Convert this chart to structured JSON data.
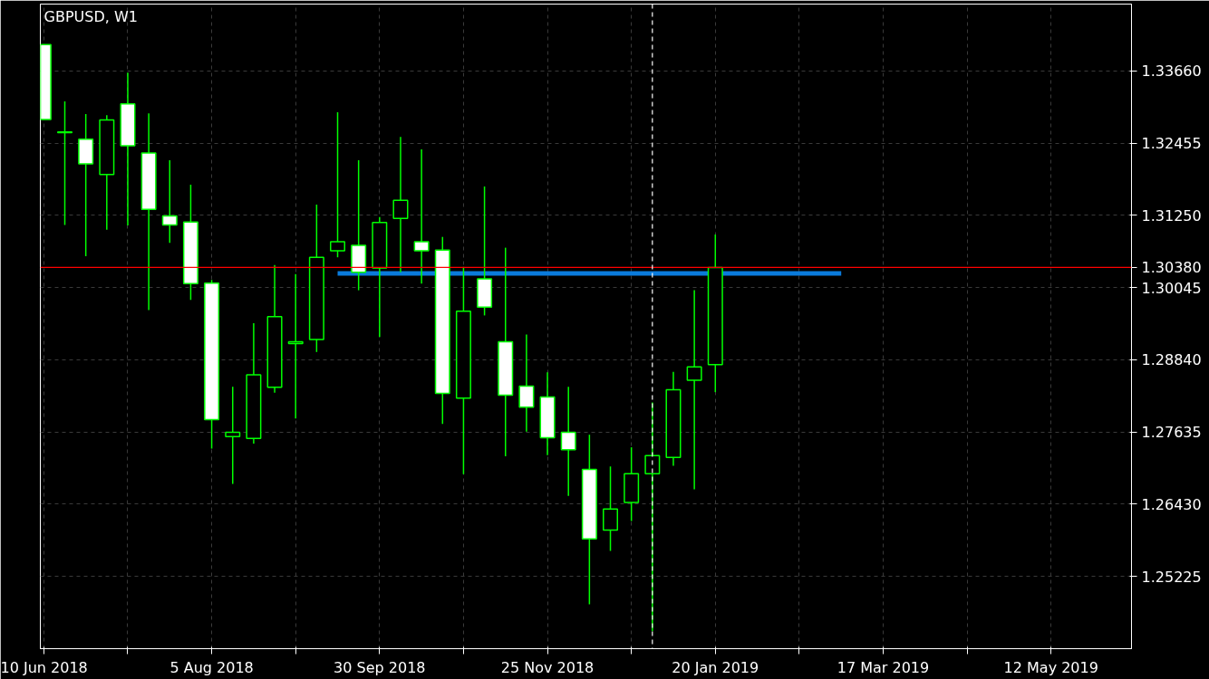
{
  "chart_data": {
    "type": "candlestick",
    "title": "GBPUSD, W1",
    "x": [
      "2018-06-10",
      "2018-06-17",
      "2018-06-24",
      "2018-07-01",
      "2018-07-08",
      "2018-07-15",
      "2018-07-22",
      "2018-07-29",
      "2018-08-05",
      "2018-08-12",
      "2018-08-19",
      "2018-08-26",
      "2018-09-02",
      "2018-09-09",
      "2018-09-16",
      "2018-09-23",
      "2018-09-30",
      "2018-10-07",
      "2018-10-14",
      "2018-10-21",
      "2018-10-28",
      "2018-11-04",
      "2018-11-11",
      "2018-11-18",
      "2018-11-25",
      "2018-12-02",
      "2018-12-09",
      "2018-12-16",
      "2018-12-23",
      "2018-12-30",
      "2019-01-06",
      "2019-01-13",
      "2019-01-20"
    ],
    "ohlc": [
      [
        1.341,
        1.341,
        1.3285,
        1.3285
      ],
      [
        1.3264,
        1.3315,
        1.3109,
        1.3263
      ],
      [
        1.3252,
        1.3294,
        1.3057,
        1.3211
      ],
      [
        1.3193,
        1.3292,
        1.3101,
        1.3284
      ],
      [
        1.3311,
        1.3363,
        1.3108,
        1.3241
      ],
      [
        1.3229,
        1.3295,
        1.2967,
        1.3135
      ],
      [
        1.3124,
        1.3217,
        1.3079,
        1.3109
      ],
      [
        1.3114,
        1.3176,
        1.2984,
        1.3011
      ],
      [
        1.3012,
        1.3017,
        1.2736,
        1.2784
      ],
      [
        1.2756,
        1.2839,
        1.2677,
        1.2763
      ],
      [
        1.2753,
        1.2945,
        1.2744,
        1.2859
      ],
      [
        1.2838,
        1.3042,
        1.2829,
        1.2956
      ],
      [
        1.2911,
        1.3027,
        1.2786,
        1.2914
      ],
      [
        1.2918,
        1.3143,
        1.2897,
        1.3055
      ],
      [
        1.3066,
        1.3297,
        1.3055,
        1.3081
      ],
      [
        1.3075,
        1.3217,
        1.3,
        1.303
      ],
      [
        1.3037,
        1.3122,
        1.2922,
        1.3113
      ],
      [
        1.312,
        1.3256,
        1.303,
        1.315
      ],
      [
        1.3081,
        1.3235,
        1.3011,
        1.3066
      ],
      [
        1.3067,
        1.3089,
        1.2777,
        1.2828
      ],
      [
        1.282,
        1.3039,
        1.2693,
        1.2965
      ],
      [
        1.3019,
        1.3173,
        1.2958,
        1.2972
      ],
      [
        1.2914,
        1.3071,
        1.2723,
        1.2825
      ],
      [
        1.284,
        1.2926,
        1.2764,
        1.2805
      ],
      [
        1.2822,
        1.2863,
        1.2725,
        1.2754
      ],
      [
        1.2763,
        1.2839,
        1.2657,
        1.2734
      ],
      [
        1.2701,
        1.2759,
        1.2476,
        1.2585
      ],
      [
        1.26,
        1.2706,
        1.2565,
        1.2635
      ],
      [
        1.2646,
        1.2738,
        1.2615,
        1.2694
      ],
      [
        1.2694,
        1.2813,
        1.2431,
        1.2724
      ],
      [
        1.2721,
        1.2864,
        1.2707,
        1.2834
      ],
      [
        1.285,
        1.3,
        1.2668,
        1.2872
      ],
      [
        1.2876,
        1.3093,
        1.283,
        1.3038
      ]
    ],
    "color": "#00ff00",
    "series": [
      {
        "type": "line",
        "x": [
          "2018-09-16",
          "2019-03-03"
        ],
        "values": [
          1.3028,
          1.3028
        ],
        "color": "#0a7bdc"
      }
    ],
    "ref_lines": [
      {
        "axis": "y",
        "value": 1.3038,
        "label": "1.30380",
        "color": "#ff0000"
      },
      {
        "axis": "x",
        "value": "2018-12-30",
        "color": "#ffffff",
        "line_style": "dashed"
      }
    ],
    "xlim": [
      "2018-06-08T20:00",
      "2019-06-07T20:00"
    ],
    "xticks": [
      {
        "value": "2018-06-10",
        "label": "10 Jun 2018"
      },
      {
        "value": "2018-07-08",
        "label": null
      },
      {
        "value": "2018-08-05",
        "label": "5 Aug 2018"
      },
      {
        "value": "2018-09-02",
        "label": null
      },
      {
        "value": "2018-09-30",
        "label": "30 Sep 2018"
      },
      {
        "value": "2018-10-28",
        "label": null
      },
      {
        "value": "2018-11-25",
        "label": "25 Nov 2018"
      },
      {
        "value": "2018-12-23",
        "label": null
      },
      {
        "value": "2019-01-20",
        "label": "20 Jan 2019"
      },
      {
        "value": "2019-02-17",
        "label": null
      },
      {
        "value": "2019-03-17",
        "label": "17 Mar 2019"
      },
      {
        "value": "2019-04-14",
        "label": null
      },
      {
        "value": "2019-05-12",
        "label": "12 May 2019"
      }
    ],
    "ylim": [
      1.2402,
      1.34775
    ],
    "yticks": [
      {
        "value": 1.25225,
        "label": "1.25225"
      },
      {
        "value": 1.2643,
        "label": "1.26430"
      },
      {
        "value": 1.27635,
        "label": "1.27635"
      },
      {
        "value": 1.2884,
        "label": "1.28840"
      },
      {
        "value": 1.30045,
        "label": "1.30045"
      },
      {
        "value": 1.3125,
        "label": "1.31250"
      },
      {
        "value": 1.32455,
        "label": "1.32455"
      },
      {
        "value": 1.3366,
        "label": "1.33660"
      }
    ],
    "grid": true
  }
}
